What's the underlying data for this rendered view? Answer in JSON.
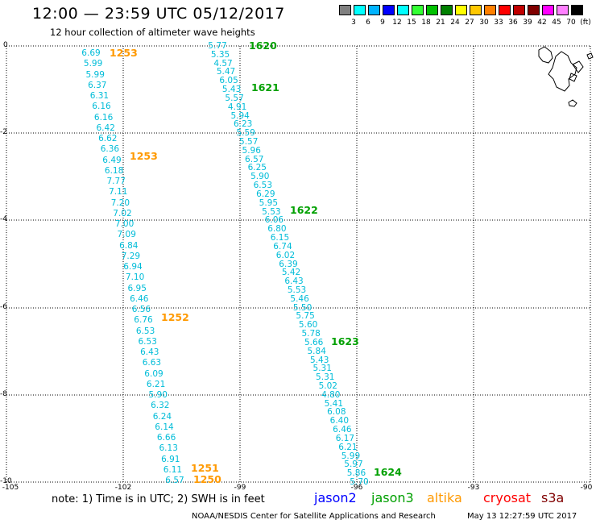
{
  "header": {
    "title": "12:00 — 23:59 UTC 05/12/2017",
    "subtitle": "12 hour collection of altimeter wave heights"
  },
  "legend": {
    "unit": "(ft)",
    "colors": [
      "#808080",
      "#00ffff",
      "#00b4ff",
      "#0000ff",
      "#00ffff",
      "#33ff33",
      "#00c000",
      "#008000",
      "#ffff00",
      "#ffc800",
      "#ff8000",
      "#ff0000",
      "#c00000",
      "#800000",
      "#ff00ff",
      "#ff80ff",
      "#000000"
    ],
    "labels": [
      "3",
      "6",
      "9",
      "12",
      "15",
      "18",
      "21",
      "24",
      "27",
      "30",
      "33",
      "36",
      "39",
      "42",
      "45",
      "70",
      "(ft)"
    ]
  },
  "axes": {
    "x_ticks": [
      "-105",
      "-102",
      "-99",
      "-96",
      "-93",
      "-90"
    ],
    "y_ticks": [
      "0",
      "-2",
      "-4",
      "-6",
      "-8",
      "-10"
    ]
  },
  "tracks": {
    "west": {
      "values": [
        "6.69",
        "5.99",
        "5.99",
        "6.37",
        "6.31",
        "6.16",
        "6.16",
        "6.42",
        "6.62",
        "6.36",
        "6.49",
        "6.18",
        "7.77",
        "7.11",
        "7.20",
        "7.02",
        "7.00",
        "7.09",
        "6.84",
        "7.29",
        "6.94",
        "7.10",
        "6.95",
        "6.46",
        "6.56",
        "6.76",
        "6.53",
        "6.53",
        "6.43",
        "6.63",
        "6.09",
        "6.21",
        "5.90",
        "6.32",
        "6.24",
        "6.14",
        "6.66",
        "6.13",
        "6.91",
        "6.11",
        "6.57"
      ],
      "times": [
        "1253",
        "1253",
        "1252",
        "1251",
        "1250"
      ]
    },
    "east": {
      "values": [
        "5.77",
        "5.35",
        "4.57",
        "5.47",
        "6.05",
        "5.43",
        "5.57",
        "4.91",
        "5.94",
        "6.23",
        "5.59",
        "5.57",
        "5.96",
        "6.57",
        "6.25",
        "5.90",
        "6.53",
        "6.29",
        "5.95",
        "5.53",
        "6.06",
        "6.80",
        "6.15",
        "6.74",
        "6.02",
        "6.39",
        "5.42",
        "6.43",
        "5.53",
        "5.46",
        "5.50",
        "5.75",
        "5.60",
        "5.78",
        "5.66",
        "5.84",
        "5.43",
        "5.31",
        "5.31",
        "5.02",
        "4.80",
        "5.41",
        "6.08",
        "6.40",
        "6.46",
        "6.17",
        "6.21",
        "5.99",
        "5.97",
        "5.86",
        "5.70"
      ],
      "times": [
        "1620",
        "1621",
        "1622",
        "1623",
        "1624"
      ]
    }
  },
  "track_colors": {
    "values": "#00bcd8",
    "altika": "#ff9900",
    "jason3": "#00a000"
  },
  "footer": {
    "note": "note: 1) Time is in UTC; 2) SWH is in feet",
    "sats": [
      {
        "name": "jason2",
        "color": "#0000ff"
      },
      {
        "name": "jason3",
        "color": "#00a000"
      },
      {
        "name": "altika",
        "color": "#ff9900"
      },
      {
        "name": "cryosat",
        "color": "#ff0000"
      },
      {
        "name": "s3a",
        "color": "#800000"
      }
    ],
    "credit": "NOAA/NESDIS Center for Satellite Applications and Research",
    "timestamp": "May 13 12:27:59 UTC 2017"
  }
}
